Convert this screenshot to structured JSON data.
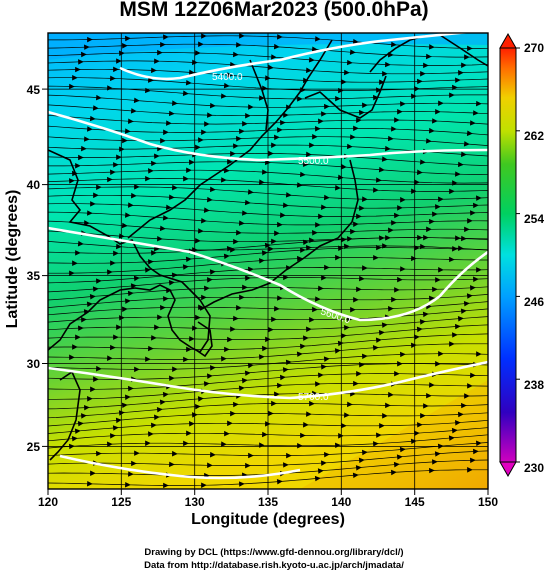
{
  "title": "MSM 12Z06Mar2023 (500.0hPa)",
  "x_axis": {
    "label": "Longitude (degrees)",
    "ticks": [
      "120",
      "125",
      "130",
      "135",
      "140",
      "145",
      "150"
    ]
  },
  "y_axis": {
    "label": "Latitude  (degrees)",
    "ticks": [
      "25",
      "30",
      "35",
      "40",
      "45"
    ]
  },
  "colorbar": {
    "ticks": [
      "230",
      "238",
      "246",
      "254",
      "262",
      "270"
    ],
    "min": 230,
    "max": 270
  },
  "contours": [
    {
      "label": "5400.0"
    },
    {
      "label": "5500.0"
    },
    {
      "label": "5600.0"
    },
    {
      "label": "5700.0"
    }
  ],
  "credits": {
    "line1": "Drawing by DCL (https://www.gfd-dennou.org/library/dcl/)",
    "line2": "Data from http://database.rish.kyoto-u.ac.jp/arch/jmadata/"
  },
  "map_data": {
    "lon_range": [
      120,
      150
    ],
    "lat_range": [
      22.4,
      47.6
    ],
    "quantity": "temperature (K) shaded, geopotential height contours, wind streamlines"
  }
}
